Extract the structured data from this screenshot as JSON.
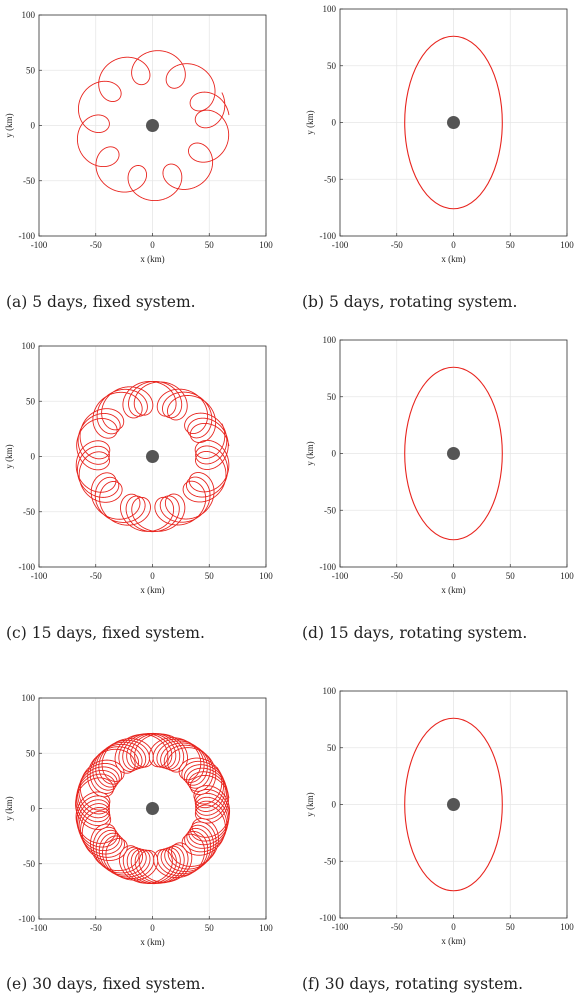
{
  "axis": {
    "xlabel": "x (km)",
    "ylabel": "y (km)",
    "xlim": [
      -100,
      100
    ],
    "ylim": [
      -100,
      100
    ],
    "ticks": [
      -100,
      -50,
      0,
      50,
      100
    ],
    "grid": true
  },
  "colors": {
    "trajectory": "#e8241e",
    "body": "#555555",
    "frame": "#333333",
    "grid": "#e6e6e6"
  },
  "chart_data": [
    {
      "id": "a",
      "type": "line",
      "frame": "fixed",
      "days": 5,
      "caption": "(a) 5 days, fixed system.",
      "central_body": [
        0,
        0
      ],
      "ellipse_semi_axes_km": [
        43,
        76
      ],
      "loops": 10,
      "turns": 1.05,
      "start_angle_deg": 8,
      "xlabel": "x (km)",
      "ylabel": "y (km)",
      "xlim": [
        -100,
        100
      ],
      "ylim": [
        -100,
        100
      ]
    },
    {
      "id": "b",
      "type": "line",
      "frame": "rotating",
      "days": 5,
      "caption": "(b) 5 days, rotating system.",
      "central_body": [
        0,
        0
      ],
      "ellipse_semi_axes_km": [
        43,
        76
      ],
      "xlabel": "x (km)",
      "ylabel": "y (km)",
      "xlim": [
        -100,
        100
      ],
      "ylim": [
        -100,
        100
      ]
    },
    {
      "id": "c",
      "type": "line",
      "frame": "fixed",
      "days": 15,
      "caption": "(c) 15 days, fixed system.",
      "central_body": [
        0,
        0
      ],
      "ellipse_semi_axes_km": [
        43,
        76
      ],
      "loops": 30,
      "turns": 3.05,
      "start_angle_deg": 8,
      "xlabel": "x (km)",
      "ylabel": "y (km)",
      "xlim": [
        -100,
        100
      ],
      "ylim": [
        -100,
        100
      ]
    },
    {
      "id": "d",
      "type": "line",
      "frame": "rotating",
      "days": 15,
      "caption": "(d) 15 days, rotating system.",
      "central_body": [
        0,
        0
      ],
      "ellipse_semi_axes_km": [
        43,
        76
      ],
      "xlabel": "x (km)",
      "ylabel": "y (km)",
      "xlim": [
        -100,
        100
      ],
      "ylim": [
        -100,
        100
      ]
    },
    {
      "id": "e",
      "type": "line",
      "frame": "fixed",
      "days": 30,
      "caption": "(e) 30 days, fixed system.",
      "central_body": [
        0,
        0
      ],
      "ellipse_semi_axes_km": [
        43,
        76
      ],
      "loops": 60,
      "turns": 6.07,
      "start_angle_deg": 8,
      "xlabel": "x (km)",
      "ylabel": "y (km)",
      "xlim": [
        -100,
        100
      ],
      "ylim": [
        -100,
        100
      ]
    },
    {
      "id": "f",
      "type": "line",
      "frame": "rotating",
      "days": 30,
      "caption": "(f) 30 days, rotating system.",
      "central_body": [
        0,
        0
      ],
      "ellipse_semi_axes_km": [
        43,
        76
      ],
      "xlabel": "x (km)",
      "ylabel": "y (km)",
      "xlim": [
        -100,
        100
      ],
      "ylim": [
        -100,
        100
      ]
    }
  ]
}
